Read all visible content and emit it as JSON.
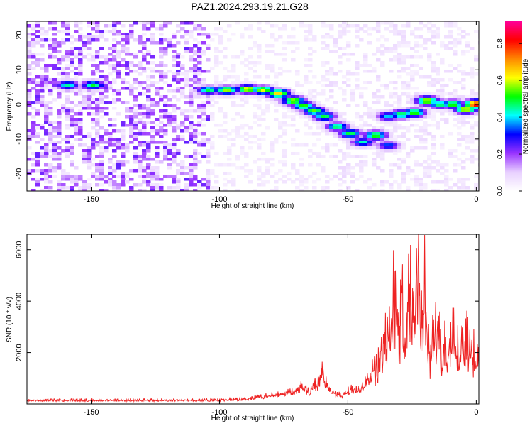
{
  "title": "PAZ1.2024.293.19.21.G28",
  "chart_data": [
    {
      "type": "heatmap",
      "xlabel": "Height of straight line (km)",
      "ylabel": "Frequency (Hz)",
      "xlim": [
        -175,
        1
      ],
      "ylim": [
        -25,
        24
      ],
      "xticks": [
        -150,
        -100,
        -50,
        0
      ],
      "yticks": [
        -20,
        -10,
        0,
        10,
        20
      ],
      "colorbar": {
        "label": "Normalized spectral amplitude",
        "range": [
          0,
          0.92
        ],
        "ticks": [
          0.0,
          0.2,
          0.4,
          0.6,
          0.8
        ],
        "colors": [
          "#ffffff",
          "#e8d0ff",
          "#9933ff",
          "#0000ff",
          "#00ffff",
          "#00ff00",
          "#ffff00",
          "#ff8800",
          "#ff0000",
          "#ff0099"
        ]
      },
      "ridge": [
        {
          "x": -160,
          "y": 6,
          "a": 0.45
        },
        {
          "x": -150,
          "y": 6,
          "a": 0.5
        },
        {
          "x": -105,
          "y": 4.5,
          "a": 0.5
        },
        {
          "x": -98,
          "y": 4.5,
          "a": 0.6
        },
        {
          "x": -90,
          "y": 4.8,
          "a": 0.65
        },
        {
          "x": -84,
          "y": 4.5,
          "a": 0.62
        },
        {
          "x": -78,
          "y": 3.5,
          "a": 0.66
        },
        {
          "x": -72,
          "y": 1.5,
          "a": 0.6
        },
        {
          "x": -68,
          "y": 0,
          "a": 0.55
        },
        {
          "x": -64,
          "y": -1.5,
          "a": 0.55
        },
        {
          "x": -60,
          "y": -3,
          "a": 0.5
        },
        {
          "x": -55,
          "y": -6,
          "a": 0.5
        },
        {
          "x": -50,
          "y": -8,
          "a": 0.5
        },
        {
          "x": -45,
          "y": -10.5,
          "a": 0.45
        },
        {
          "x": -40,
          "y": -8.5,
          "a": 0.55
        },
        {
          "x": -35,
          "y": -11.5,
          "a": 0.35
        },
        {
          "x": -35,
          "y": -3,
          "a": 0.4
        },
        {
          "x": -30,
          "y": -2.5,
          "a": 0.5
        },
        {
          "x": -25,
          "y": -2,
          "a": 0.55
        },
        {
          "x": -20,
          "y": 1.5,
          "a": 0.62
        },
        {
          "x": -15,
          "y": 0.5,
          "a": 0.5
        },
        {
          "x": -10,
          "y": 0.5,
          "a": 0.55
        },
        {
          "x": -5,
          "y": -1,
          "a": 0.65
        },
        {
          "x": -1,
          "y": 0.5,
          "a": 0.85
        }
      ]
    },
    {
      "type": "line",
      "xlabel": "Height of straight line (km)",
      "ylabel": "SNR (10 * v/v)",
      "xlim": [
        -175,
        1
      ],
      "ylim": [
        0,
        6600
      ],
      "xticks": [
        -150,
        -100,
        -50,
        0
      ],
      "yticks": [
        2000,
        4000,
        6000
      ],
      "series": [
        {
          "color": "#ee2222",
          "x": [
            -175,
            -160,
            -140,
            -120,
            -100,
            -90,
            -80,
            -75,
            -70,
            -68,
            -65,
            -63,
            -62,
            -60,
            -58,
            -55,
            -52,
            -50,
            -48,
            -45,
            -42,
            -40,
            -38,
            -36,
            -35,
            -33,
            -32,
            -31,
            -30,
            -29,
            -28,
            -27,
            -26,
            -25,
            -24,
            -23,
            -22,
            -21,
            -20,
            -19,
            -18,
            -16,
            -15,
            -13,
            -12,
            -10,
            -9,
            -8,
            -6,
            -5,
            -3,
            -2,
            -1,
            0,
            1
          ],
          "y": [
            150,
            150,
            150,
            150,
            160,
            200,
            350,
            450,
            500,
            750,
            450,
            800,
            700,
            1300,
            650,
            400,
            350,
            500,
            600,
            650,
            1000,
            1400,
            1800,
            2600,
            3100,
            3400,
            4500,
            3800,
            2900,
            4400,
            3700,
            3200,
            5100,
            3500,
            4200,
            6600,
            3900,
            3400,
            4500,
            2500,
            2000,
            3300,
            2700,
            1900,
            2200,
            2400,
            2600,
            1800,
            2400,
            2700,
            2600,
            2000,
            2300,
            2900,
            2000
          ]
        }
      ]
    }
  ]
}
